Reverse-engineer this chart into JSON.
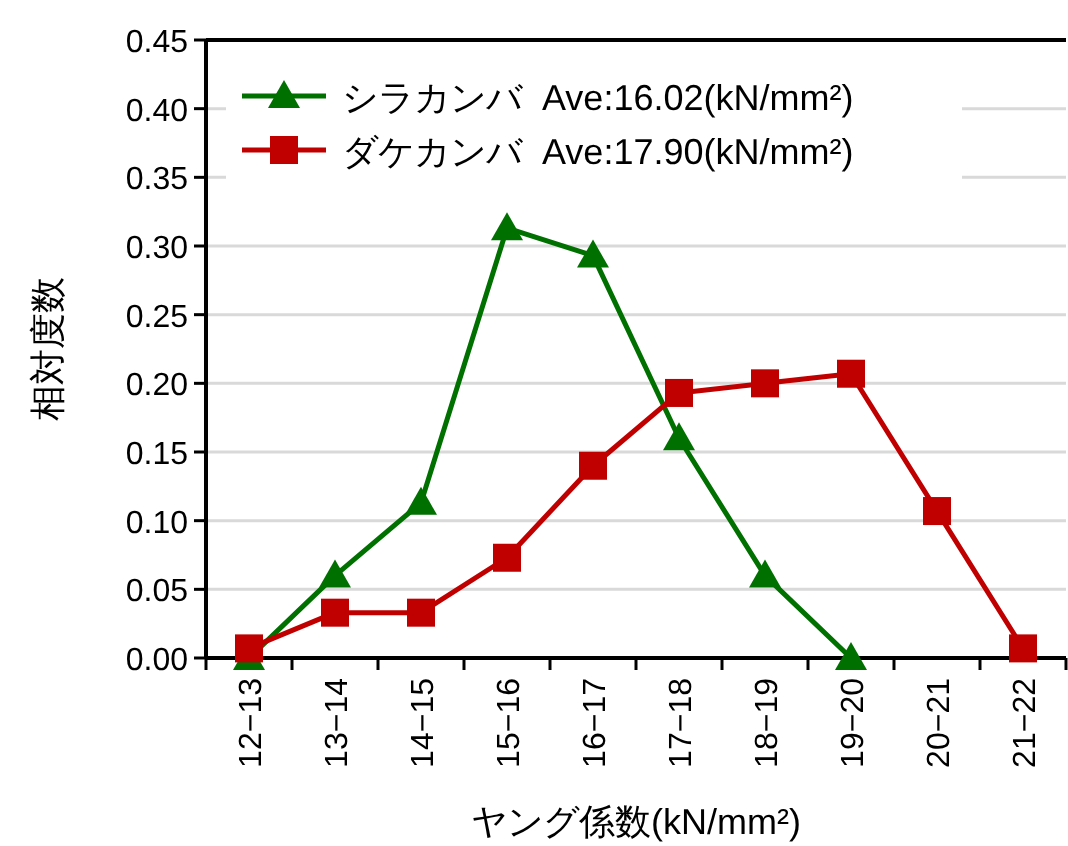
{
  "chart_data": {
    "type": "line",
    "categories": [
      "12−13",
      "13−14",
      "14−15",
      "15−16",
      "16−17",
      "17−18",
      "18−19",
      "19−20",
      "20−21",
      "21−22"
    ],
    "series": [
      {
        "name": "シラカンバ  Ave:16.02(kN/mm²)",
        "color": "#007000",
        "marker": "triangle",
        "values": [
          0,
          0.06,
          0.113,
          0.313,
          0.293,
          0.16,
          0.06,
          0,
          null,
          null
        ]
      },
      {
        "name": "ダケカンバ  Ave:17.90(kN/mm²)",
        "color": "#c00000",
        "marker": "square",
        "values": [
          0.007,
          0.033,
          0.033,
          0.073,
          0.14,
          0.193,
          0.2,
          0.207,
          0.107,
          0.007
        ]
      }
    ],
    "xlabel": "ヤング係数(kN/mm²)",
    "ylabel": "相対度数",
    "ylim": [
      0,
      0.45
    ],
    "yticks": [
      {
        "value": 0,
        "label": "0.00"
      },
      {
        "value": 0.05,
        "label": "0.05"
      },
      {
        "value": 0.1,
        "label": "0.10"
      },
      {
        "value": 0.15,
        "label": "0.15"
      },
      {
        "value": 0.2,
        "label": "0.20"
      },
      {
        "value": 0.25,
        "label": "0.25"
      },
      {
        "value": 0.3,
        "label": "0.30"
      },
      {
        "value": 0.35,
        "label": "0.35"
      },
      {
        "value": 0.4,
        "label": "0.40"
      },
      {
        "value": 0.45,
        "label": "0.45"
      }
    ],
    "grid": "y",
    "legend": "top left",
    "line_style": "solid"
  }
}
